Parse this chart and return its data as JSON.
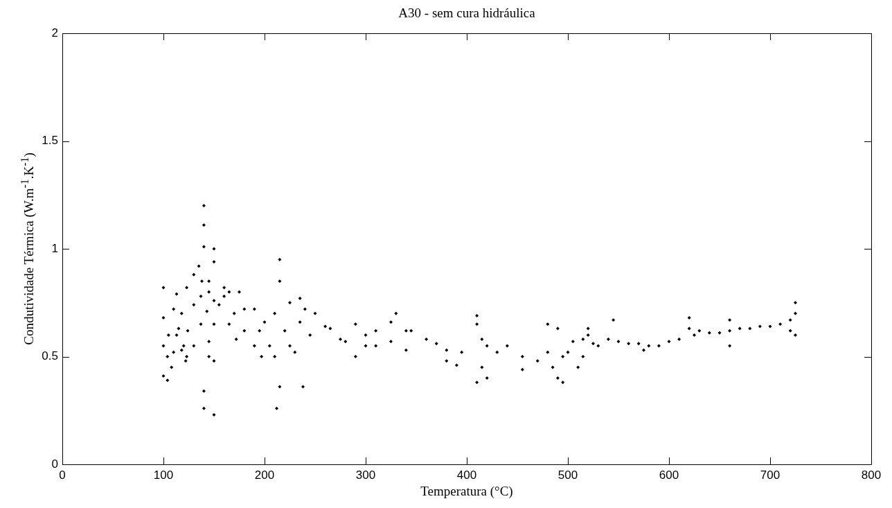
{
  "chart_data": {
    "type": "scatter",
    "title": "A30 - sem cura hidráulica",
    "xlabel": "Temperatura (°C)",
    "ylabel": "Condutividade Térmica (W.m$^{-1}$.K$^{-1}$)",
    "color": "#000000",
    "marker": "diamond",
    "x": [
      100,
      100,
      105,
      110,
      100,
      104,
      108,
      100,
      104,
      110,
      115,
      120,
      123,
      113,
      118,
      124,
      130,
      113,
      118,
      122,
      123,
      130,
      137,
      145,
      130,
      137,
      143,
      150,
      135,
      140,
      140,
      140,
      150,
      140,
      140,
      150,
      138,
      145,
      150,
      145,
      155,
      165,
      172,
      150,
      160,
      160,
      170,
      180,
      190,
      197,
      165,
      180,
      195,
      205,
      210,
      150,
      145,
      175,
      190,
      200,
      215,
      215,
      215,
      212,
      210,
      220,
      225,
      225,
      235,
      245,
      235,
      250,
      265,
      280,
      240,
      260,
      275,
      230,
      238,
      290,
      300,
      310,
      300,
      290,
      310,
      325,
      340,
      325,
      340,
      360,
      380,
      330,
      345,
      370,
      395,
      380,
      390,
      410,
      410,
      415,
      420,
      430,
      410,
      420,
      415,
      440,
      455,
      470,
      455,
      480,
      490,
      490,
      495,
      485,
      480,
      495,
      500,
      505,
      515,
      520,
      525,
      530,
      515,
      510,
      520,
      540,
      545,
      550,
      560,
      570,
      580,
      590,
      575,
      600,
      610,
      620,
      620,
      625,
      630,
      640,
      650,
      660,
      660,
      660,
      670,
      680,
      690,
      700,
      710,
      720,
      725,
      725,
      725,
      720
    ],
    "values": [
      0.82,
      0.68,
      0.6,
      0.52,
      0.55,
      0.5,
      0.45,
      0.41,
      0.39,
      0.72,
      0.63,
      0.55,
      0.5,
      0.79,
      0.7,
      0.62,
      0.55,
      0.6,
      0.53,
      0.48,
      0.82,
      0.74,
      0.65,
      0.57,
      0.88,
      0.78,
      0.71,
      0.65,
      0.92,
      1.2,
      1.11,
      1.01,
      1.0,
      0.34,
      0.26,
      0.23,
      0.85,
      0.8,
      0.76,
      0.85,
      0.74,
      0.65,
      0.58,
      0.94,
      0.82,
      0.78,
      0.7,
      0.62,
      0.55,
      0.5,
      0.8,
      0.72,
      0.62,
      0.55,
      0.5,
      0.48,
      0.5,
      0.8,
      0.72,
      0.66,
      0.95,
      0.85,
      0.36,
      0.26,
      0.7,
      0.62,
      0.55,
      0.75,
      0.66,
      0.6,
      0.77,
      0.7,
      0.63,
      0.57,
      0.72,
      0.64,
      0.58,
      0.52,
      0.36,
      0.65,
      0.6,
      0.55,
      0.55,
      0.5,
      0.62,
      0.57,
      0.53,
      0.66,
      0.62,
      0.58,
      0.53,
      0.7,
      0.62,
      0.56,
      0.52,
      0.48,
      0.46,
      0.69,
      0.65,
      0.58,
      0.55,
      0.52,
      0.38,
      0.4,
      0.45,
      0.55,
      0.5,
      0.48,
      0.44,
      0.65,
      0.63,
      0.4,
      0.38,
      0.45,
      0.52,
      0.5,
      0.52,
      0.57,
      0.58,
      0.6,
      0.56,
      0.55,
      0.5,
      0.45,
      0.63,
      0.58,
      0.67,
      0.57,
      0.56,
      0.56,
      0.55,
      0.55,
      0.53,
      0.57,
      0.58,
      0.63,
      0.68,
      0.6,
      0.62,
      0.61,
      0.61,
      0.62,
      0.67,
      0.55,
      0.63,
      0.63,
      0.64,
      0.64,
      0.65,
      0.67,
      0.7,
      0.75,
      0.6,
      0.62
    ],
    "xlim": [
      0,
      800
    ],
    "xticks": [
      0,
      100,
      200,
      300,
      400,
      500,
      600,
      700,
      800
    ],
    "ylim": [
      0,
      2
    ],
    "yticks": [
      0,
      0.5,
      1,
      1.5,
      2
    ]
  }
}
